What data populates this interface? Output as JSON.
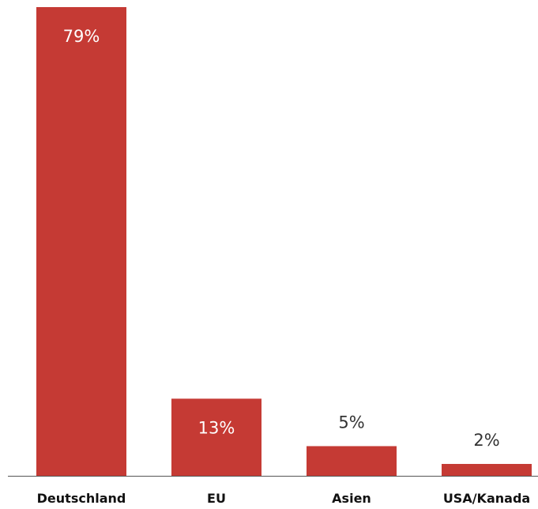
{
  "chart_data": {
    "type": "bar",
    "categories": [
      "Deutschland",
      "EU",
      "Asien",
      "USA/Kanada"
    ],
    "values": [
      79,
      13,
      5,
      2
    ],
    "value_labels": [
      "79%",
      "13%",
      "5%",
      "2%"
    ],
    "ylim": [
      0,
      79
    ],
    "grid": false,
    "legend": "none",
    "colors": {
      "bar": "#c53a34",
      "axis": "#555555",
      "label_inside": "#ffffff",
      "label_outside": "#333333",
      "tick_label": "#111111"
    }
  }
}
